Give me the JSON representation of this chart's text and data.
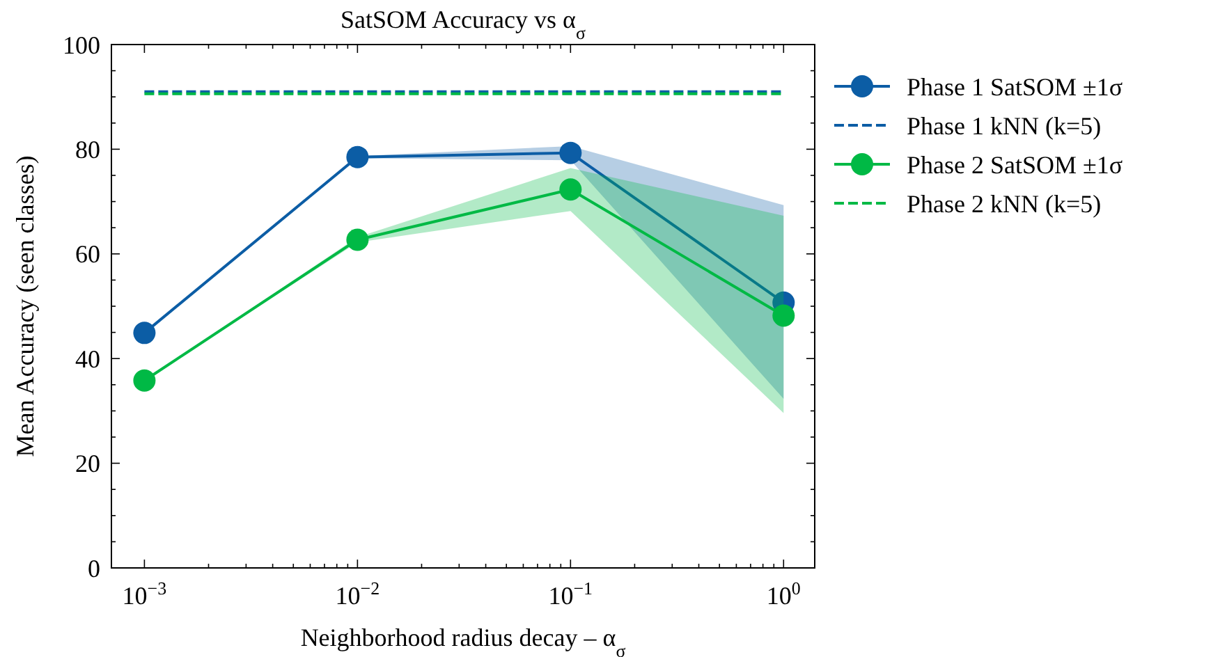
{
  "chart_data": {
    "type": "line",
    "title": "SatSOM Accuracy vs α$_{σ}$",
    "xlabel": "Neighborhood radius decay – α$_{σ}$",
    "ylabel": "Mean Accuracy (seen classes)",
    "log": "x",
    "xlim": [
      0.0007,
      1.4
    ],
    "xticks": [
      {
        "value": 0.001,
        "label": "10$^{−3}$"
      },
      {
        "value": 0.002,
        "label": null
      },
      {
        "value": 0.003,
        "label": null
      },
      {
        "value": 0.004,
        "label": null
      },
      {
        "value": 0.005,
        "label": null
      },
      {
        "value": 0.006,
        "label": null
      },
      {
        "value": 0.007,
        "label": null
      },
      {
        "value": 0.008,
        "label": null
      },
      {
        "value": 0.009,
        "label": null
      },
      {
        "value": 0.01,
        "label": "10$^{−2}$"
      },
      {
        "value": 0.02,
        "label": null
      },
      {
        "value": 0.03,
        "label": null
      },
      {
        "value": 0.04,
        "label": null
      },
      {
        "value": 0.05,
        "label": null
      },
      {
        "value": 0.06,
        "label": null
      },
      {
        "value": 0.07,
        "label": null
      },
      {
        "value": 0.08,
        "label": null
      },
      {
        "value": 0.09,
        "label": null
      },
      {
        "value": 0.1,
        "label": "10$^{−1}$"
      },
      {
        "value": 0.2,
        "label": null
      },
      {
        "value": 0.3,
        "label": null
      },
      {
        "value": 0.4,
        "label": null
      },
      {
        "value": 0.5,
        "label": null
      },
      {
        "value": 0.6,
        "label": null
      },
      {
        "value": 0.7,
        "label": null
      },
      {
        "value": 0.8,
        "label": null
      },
      {
        "value": 0.9,
        "label": null
      },
      {
        "value": 1,
        "label": "10$^{0}$"
      }
    ],
    "ylim": [
      0,
      100
    ],
    "yticks": [
      0,
      {
        "value": 5,
        "label": null
      },
      {
        "value": 10,
        "label": null
      },
      {
        "value": 15,
        "label": null
      },
      20,
      {
        "value": 25,
        "label": null
      },
      {
        "value": 30,
        "label": null
      },
      {
        "value": 35,
        "label": null
      },
      40,
      {
        "value": 45,
        "label": null
      },
      {
        "value": 50,
        "label": null
      },
      {
        "value": 55,
        "label": null
      },
      60,
      {
        "value": 65,
        "label": null
      },
      {
        "value": 70,
        "label": null
      },
      {
        "value": 75,
        "label": null
      },
      80,
      {
        "value": 85,
        "label": null
      },
      {
        "value": 90,
        "label": null
      },
      {
        "value": 95,
        "label": null
      },
      100
    ],
    "grid": false,
    "legend": "right",
    "series": [
      {
        "name": "Phase 1 SatSOM ±1σ",
        "color": "#0c5da5",
        "x": [
          0.001,
          0.01,
          0.1,
          1
        ],
        "values": [
          44.9,
          78.5,
          79.3,
          50.7
        ],
        "lower": [
          44.9,
          78.3,
          77.9,
          32.3
        ],
        "upper": [
          44.9,
          78.7,
          80.6,
          69.3
        ],
        "marker": "circle",
        "line_style": "solid"
      },
      {
        "name": "Phase 1 kNN (k=5)",
        "color": "#0c5da5",
        "x": [
          0.001,
          1
        ],
        "values": [
          91.0,
          91.0
        ],
        "marker": "none",
        "line_style": "dashed"
      },
      {
        "name": "Phase 2 SatSOM ±1σ",
        "color": "#00b945",
        "x": [
          0.001,
          0.01,
          0.1,
          1
        ],
        "values": [
          35.8,
          62.7,
          72.3,
          48.2
        ],
        "lower": [
          35.8,
          62.2,
          68.2,
          29.6
        ],
        "upper": [
          35.8,
          63.2,
          76.4,
          67.3
        ],
        "marker": "circle",
        "line_style": "solid"
      },
      {
        "name": "Phase 2 kNN (k=5)",
        "color": "#00b945",
        "x": [
          0.001,
          1
        ],
        "values": [
          90.6,
          90.6
        ],
        "marker": "none",
        "line_style": "dashed"
      }
    ]
  }
}
